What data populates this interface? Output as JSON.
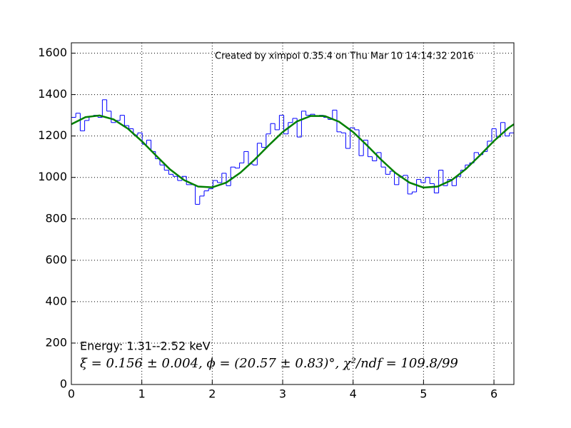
{
  "chart_data": {
    "type": "histogram",
    "annotations": [
      "Created by ximpol 0.35.4 on Thu Mar 10 14:14:32 2016",
      "Energy: 1.31--2.52 keV",
      "ξ = 0.156 ± 0.004, ϕ = (20.57 ± 0.83)°, χ²/ndf = 109.8/99"
    ],
    "xlim": [
      0,
      6.2832
    ],
    "xticks": [
      0,
      1,
      2,
      3,
      4,
      5,
      6
    ],
    "ylim": [
      0,
      1650
    ],
    "yticks": [
      0,
      200,
      400,
      600,
      800,
      1000,
      1200,
      1400,
      1600
    ],
    "grid": true,
    "series": [
      {
        "type": "histogram",
        "color": "#0000ff",
        "bins": [
          0,
          0.0628,
          0.1257,
          0.1885,
          0.2513,
          0.3142,
          0.377,
          0.4398,
          0.5027,
          0.5655,
          0.6283,
          0.6912,
          0.754,
          0.8168,
          0.8796,
          0.9425,
          1.0053,
          1.0681,
          1.131,
          1.1938,
          1.2566,
          1.3195,
          1.3823,
          1.4451,
          1.508,
          1.5708,
          1.6336,
          1.6965,
          1.7593,
          1.8221,
          1.885,
          1.9478,
          2.0106,
          2.0735,
          2.1363,
          2.1991,
          2.2619,
          2.3248,
          2.3876,
          2.4504,
          2.5133,
          2.5761,
          2.6389,
          2.7018,
          2.7646,
          2.8274,
          2.8903,
          2.9531,
          3.0159,
          3.0788,
          3.1416,
          3.2044,
          3.2673,
          3.3301,
          3.3929,
          3.4558,
          3.5186,
          3.5814,
          3.6442,
          3.7071,
          3.7699,
          3.8327,
          3.8956,
          3.9584,
          4.0212,
          4.0841,
          4.1469,
          4.2097,
          4.2726,
          4.3354,
          4.3982,
          4.4611,
          4.5239,
          4.5867,
          4.6496,
          4.7124,
          4.7752,
          4.8381,
          4.9009,
          4.9637,
          5.0265,
          5.0894,
          5.1522,
          5.215,
          5.2779,
          5.3407,
          5.4035,
          5.4664,
          5.5292,
          5.592,
          5.6549,
          5.7177,
          5.7805,
          5.8434,
          5.9062,
          5.969,
          6.0319,
          6.0947,
          6.1575,
          6.2204,
          6.2832
        ],
        "values": [
          1290,
          1310,
          1225,
          1275,
          1295,
          1300,
          1290,
          1375,
          1320,
          1265,
          1275,
          1300,
          1250,
          1235,
          1205,
          1215,
          1160,
          1180,
          1125,
          1090,
          1060,
          1035,
          1015,
          1005,
          985,
          1005,
          965,
          965,
          870,
          910,
          935,
          945,
          985,
          975,
          1020,
          960,
          1050,
          1045,
          1070,
          1125,
          1065,
          1060,
          1165,
          1145,
          1210,
          1260,
          1230,
          1300,
          1210,
          1265,
          1285,
          1195,
          1320,
          1300,
          1305,
          1295,
          1300,
          1290,
          1280,
          1325,
          1220,
          1215,
          1140,
          1240,
          1230,
          1105,
          1180,
          1100,
          1080,
          1120,
          1050,
          1015,
          1030,
          965,
          1005,
          1010,
          920,
          930,
          990,
          975,
          1000,
          970,
          925,
          1035,
          960,
          990,
          960,
          1005,
          1035,
          1060,
          1070,
          1120,
          1110,
          1125,
          1175,
          1235,
          1195,
          1265,
          1200,
          1215
        ]
      },
      {
        "type": "line",
        "color": "#008000",
        "x": [
          0,
          0.2,
          0.4,
          0.6,
          0.8,
          1.0,
          1.2,
          1.4,
          1.6,
          1.8,
          2.0,
          2.2,
          2.4,
          2.6,
          2.8,
          3.0,
          3.2,
          3.4,
          3.6,
          3.8,
          4.0,
          4.2,
          4.4,
          4.6,
          4.8,
          5.0,
          5.2,
          5.4,
          5.6,
          5.8,
          6.0,
          6.2,
          6.2832
        ],
        "values": [
          1257,
          1291,
          1299,
          1280,
          1236,
          1175,
          1106,
          1039,
          987,
          956,
          952,
          975,
          1023,
          1085,
          1154,
          1219,
          1270,
          1297,
          1296,
          1269,
          1219,
          1154,
          1085,
          1022,
          975,
          951,
          956,
          987,
          1040,
          1106,
          1176,
          1237,
          1257
        ]
      }
    ]
  }
}
